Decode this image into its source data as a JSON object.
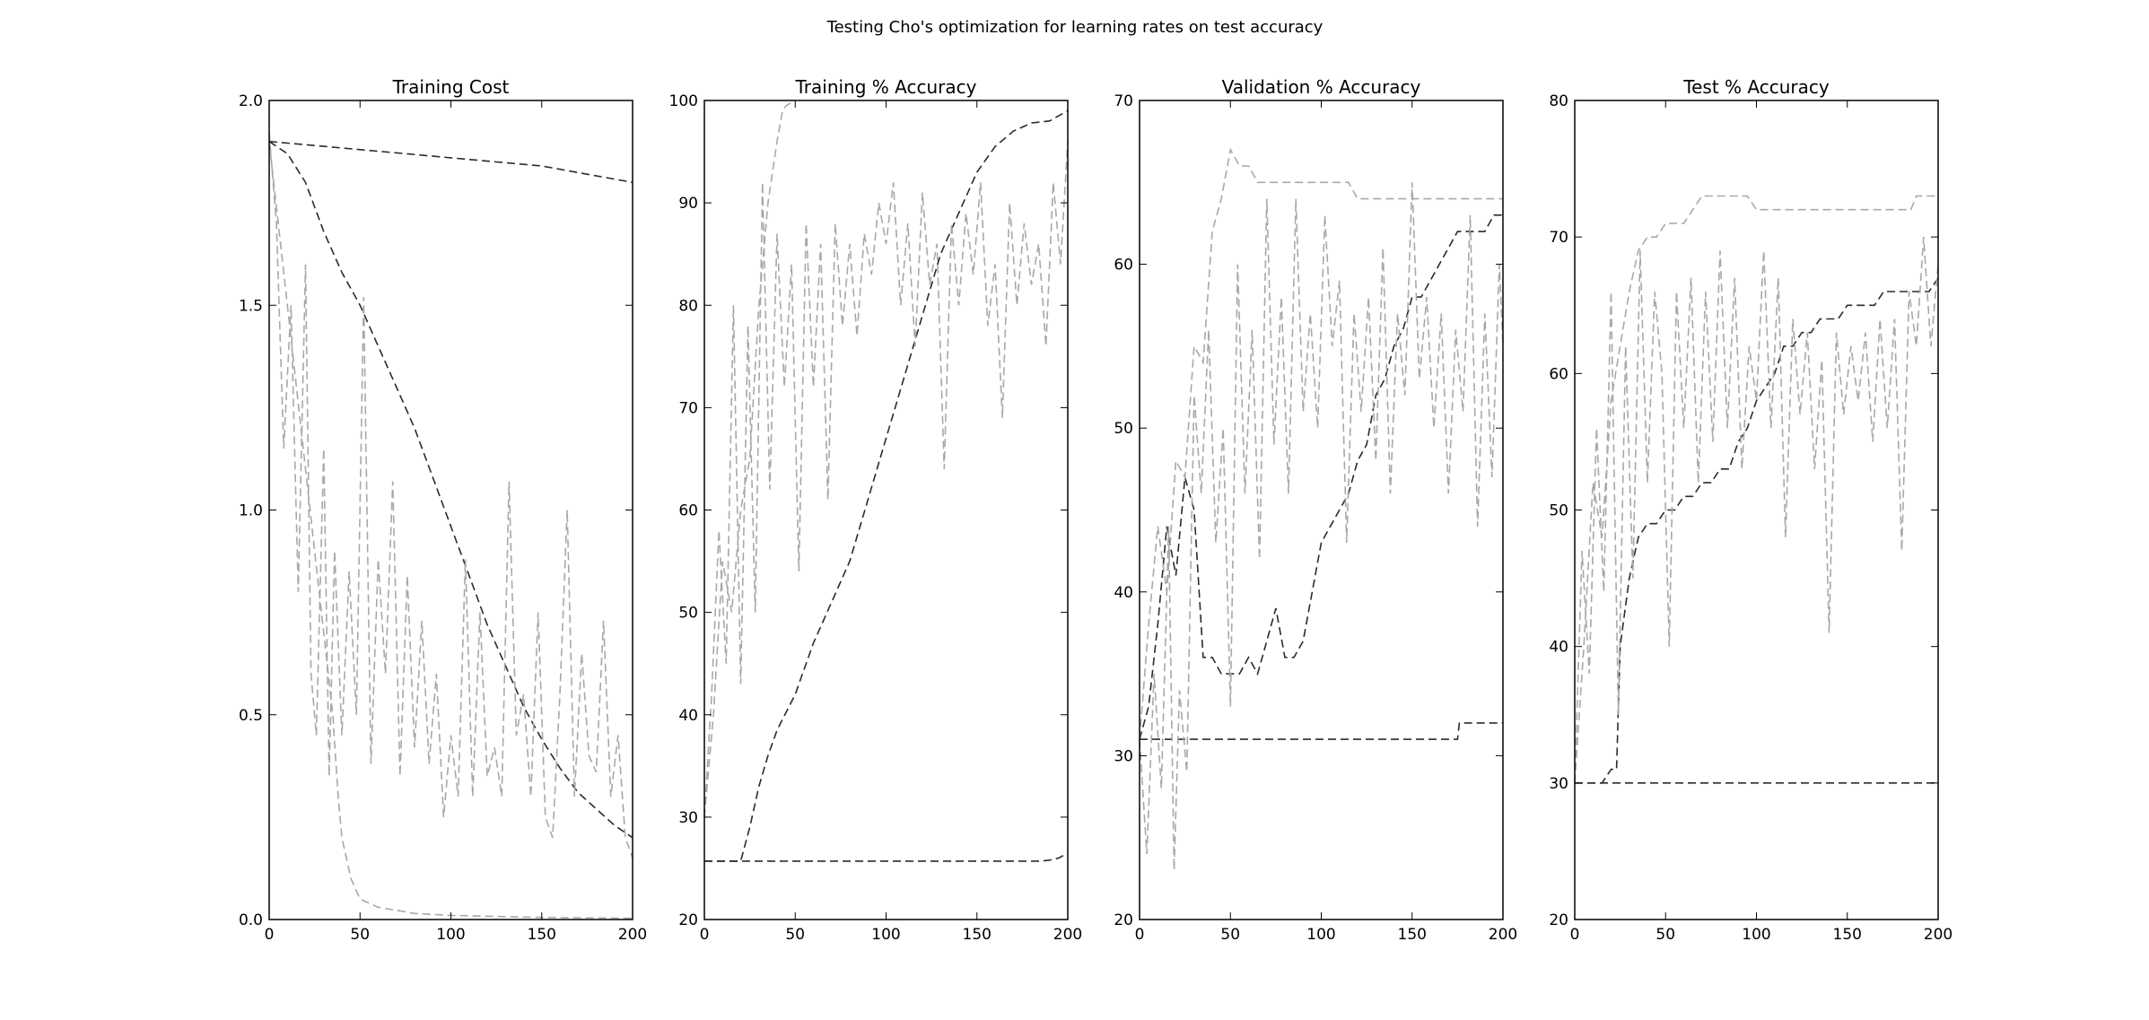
{
  "figure": {
    "suptitle": "Testing Cho's optimization for learning rates on test accuracy"
  },
  "colors": {
    "dark": "#2b2b2b",
    "light": "#a8a8a8",
    "axes": "#000000",
    "background": "#ffffff"
  },
  "chart_data": [
    {
      "type": "line",
      "title": "Training Cost",
      "xlabel": "",
      "ylabel": "",
      "xlim": [
        0,
        200
      ],
      "ylim": [
        0.0,
        2.0
      ],
      "xticks": [
        0,
        50,
        100,
        150,
        200
      ],
      "yticks": [
        0.0,
        0.5,
        1.0,
        1.5,
        2.0
      ],
      "ytick_labels": [
        "0.0",
        "0.5",
        "1.0",
        "1.5",
        "2.0"
      ],
      "grid": false,
      "series": [
        {
          "style": "dark",
          "x": [
            0,
            25,
            50,
            75,
            100,
            125,
            150,
            175,
            200
          ],
          "y": [
            1.9,
            1.89,
            1.88,
            1.87,
            1.86,
            1.85,
            1.84,
            1.82,
            1.8
          ]
        },
        {
          "style": "dark",
          "x": [
            0,
            10,
            20,
            30,
            40,
            50,
            60,
            70,
            80,
            90,
            100,
            110,
            120,
            130,
            140,
            150,
            160,
            170,
            180,
            190,
            200
          ],
          "y": [
            1.9,
            1.87,
            1.8,
            1.68,
            1.58,
            1.5,
            1.4,
            1.3,
            1.2,
            1.08,
            0.96,
            0.84,
            0.72,
            0.62,
            0.52,
            0.44,
            0.37,
            0.31,
            0.27,
            0.23,
            0.2
          ]
        },
        {
          "style": "light",
          "x": [
            0,
            5,
            10,
            15,
            20,
            25,
            30,
            35,
            38,
            40,
            45,
            50,
            60,
            80,
            100,
            150,
            200
          ],
          "y": [
            1.9,
            1.7,
            1.5,
            1.3,
            1.1,
            0.9,
            0.7,
            0.5,
            0.3,
            0.2,
            0.1,
            0.05,
            0.03,
            0.015,
            0.01,
            0.005,
            0.003
          ]
        },
        {
          "style": "light",
          "x": [
            0,
            4,
            8,
            12,
            16,
            20,
            23,
            26,
            30,
            33,
            36,
            40,
            44,
            48,
            52,
            56,
            60,
            64,
            68,
            72,
            76,
            80,
            84,
            88,
            92,
            96,
            100,
            104,
            108,
            112,
            116,
            120,
            124,
            128,
            132,
            136,
            140,
            144,
            148,
            152,
            156,
            160,
            164,
            168,
            172,
            176,
            180,
            184,
            188,
            192,
            196,
            200
          ],
          "y": [
            1.92,
            1.7,
            1.15,
            1.5,
            0.8,
            1.6,
            0.6,
            0.45,
            1.15,
            0.35,
            0.9,
            0.45,
            0.85,
            0.5,
            1.52,
            0.38,
            0.88,
            0.6,
            1.07,
            0.35,
            0.84,
            0.42,
            0.73,
            0.38,
            0.6,
            0.25,
            0.45,
            0.3,
            0.88,
            0.3,
            0.75,
            0.35,
            0.42,
            0.3,
            1.07,
            0.45,
            0.55,
            0.3,
            0.75,
            0.25,
            0.2,
            0.55,
            1.0,
            0.3,
            0.65,
            0.4,
            0.36,
            0.73,
            0.3,
            0.45,
            0.2,
            0.15
          ]
        }
      ]
    },
    {
      "type": "line",
      "title": "Training % Accuracy",
      "xlabel": "",
      "ylabel": "",
      "xlim": [
        0,
        200
      ],
      "ylim": [
        20,
        100
      ],
      "xticks": [
        0,
        50,
        100,
        150,
        200
      ],
      "yticks": [
        20,
        30,
        40,
        50,
        60,
        70,
        80,
        90,
        100
      ],
      "ytick_labels": [
        "20",
        "30",
        "40",
        "50",
        "60",
        "70",
        "80",
        "90",
        "100"
      ],
      "grid": false,
      "series": [
        {
          "style": "dark",
          "x": [
            0,
            50,
            100,
            150,
            185,
            190,
            195,
            200
          ],
          "y": [
            25.7,
            25.7,
            25.7,
            25.7,
            25.7,
            25.8,
            26,
            26.5
          ]
        },
        {
          "style": "dark",
          "x": [
            0,
            20,
            25,
            30,
            35,
            40,
            50,
            60,
            70,
            80,
            90,
            100,
            110,
            120,
            130,
            140,
            150,
            160,
            170,
            180,
            190,
            200
          ],
          "y": [
            25.7,
            25.7,
            29,
            33,
            36,
            38.5,
            42,
            47,
            51,
            55,
            61,
            67,
            73,
            79,
            85,
            89,
            93,
            95.5,
            97,
            97.8,
            98,
            99
          ]
        },
        {
          "style": "light",
          "x": [
            0,
            5,
            10,
            15,
            20,
            25,
            30,
            35,
            40,
            43,
            45,
            50
          ],
          "y": [
            30,
            40,
            55,
            50,
            60,
            65,
            80,
            90,
            96,
            99,
            99.5,
            100
          ]
        },
        {
          "style": "light",
          "x": [
            0,
            4,
            8,
            12,
            16,
            20,
            24,
            28,
            32,
            36,
            40,
            44,
            48,
            52,
            56,
            60,
            64,
            68,
            72,
            76,
            80,
            84,
            88,
            92,
            96,
            100,
            104,
            108,
            112,
            116,
            120,
            124,
            128,
            132,
            136,
            140,
            144,
            148,
            152,
            156,
            160,
            164,
            168,
            172,
            176,
            180,
            184,
            188,
            192,
            196,
            200
          ],
          "y": [
            30,
            42,
            58,
            45,
            80,
            43,
            78,
            50,
            92,
            62,
            87,
            72,
            84,
            54,
            88,
            72,
            86,
            61,
            88,
            78,
            86,
            77,
            87,
            83,
            90,
            86,
            92,
            80,
            88,
            76,
            91,
            82,
            86,
            64,
            88,
            80,
            89,
            83,
            92,
            78,
            84,
            69,
            90,
            80,
            88,
            82,
            86,
            76,
            92,
            84,
            96
          ]
        }
      ]
    },
    {
      "type": "line",
      "title": "Validation % Accuracy",
      "xlabel": "",
      "ylabel": "",
      "xlim": [
        0,
        200
      ],
      "ylim": [
        20,
        70
      ],
      "xticks": [
        0,
        50,
        100,
        150,
        200
      ],
      "yticks": [
        20,
        30,
        40,
        50,
        60,
        70
      ],
      "ytick_labels": [
        "20",
        "30",
        "40",
        "50",
        "60",
        "70"
      ],
      "grid": false,
      "series": [
        {
          "style": "dark",
          "x": [
            0,
            50,
            100,
            150,
            175,
            176,
            200
          ],
          "y": [
            31,
            31,
            31,
            31,
            31,
            32,
            32
          ]
        },
        {
          "style": "dark",
          "x": [
            0,
            5,
            10,
            15,
            20,
            25,
            30,
            35,
            40,
            45,
            50,
            55,
            60,
            65,
            70,
            75,
            80,
            85,
            90,
            95,
            100,
            105,
            110,
            115,
            120,
            125,
            130,
            135,
            140,
            145,
            150,
            155,
            160,
            165,
            170,
            175,
            180,
            185,
            190,
            195,
            200
          ],
          "y": [
            31,
            33,
            38,
            44,
            41,
            47,
            45,
            36,
            36,
            35,
            35,
            35,
            36,
            35,
            37,
            39,
            36,
            36,
            37,
            40,
            43,
            44,
            45,
            46,
            48,
            49,
            52,
            53,
            55,
            56,
            58,
            58,
            59,
            60,
            61,
            62,
            62,
            62,
            62,
            63,
            63
          ]
        },
        {
          "style": "light",
          "x": [
            0,
            5,
            10,
            15,
            20,
            25,
            30,
            35,
            40,
            45,
            50,
            55,
            60,
            65,
            70,
            80,
            90,
            100,
            110,
            115,
            120,
            150,
            200
          ],
          "y": [
            31,
            38,
            44,
            40,
            48,
            47,
            55,
            54,
            62,
            64,
            67,
            66,
            66,
            65,
            65,
            65,
            65,
            65,
            65,
            65,
            64,
            64,
            64
          ]
        },
        {
          "style": "light",
          "x": [
            0,
            4,
            8,
            12,
            16,
            19,
            22,
            26,
            30,
            34,
            38,
            42,
            46,
            50,
            54,
            58,
            62,
            66,
            70,
            74,
            78,
            82,
            86,
            90,
            94,
            98,
            102,
            106,
            110,
            114,
            118,
            122,
            126,
            130,
            134,
            138,
            142,
            146,
            150,
            154,
            158,
            162,
            166,
            170,
            174,
            178,
            182,
            186,
            190,
            194,
            198,
            200
          ],
          "y": [
            31,
            24,
            35,
            28,
            44,
            23,
            34,
            29,
            52,
            46,
            56,
            43,
            50,
            33,
            60,
            46,
            56,
            42,
            64,
            49,
            58,
            46,
            64,
            51,
            57,
            50,
            63,
            55,
            59,
            43,
            57,
            51,
            58,
            48,
            61,
            46,
            57,
            52,
            65,
            53,
            58,
            50,
            57,
            46,
            56,
            51,
            63,
            44,
            57,
            47,
            60,
            55
          ]
        }
      ]
    },
    {
      "type": "line",
      "title": "Test % Accuracy",
      "xlabel": "",
      "ylabel": "",
      "xlim": [
        0,
        200
      ],
      "ylim": [
        20,
        80
      ],
      "xticks": [
        0,
        50,
        100,
        150,
        200
      ],
      "yticks": [
        20,
        30,
        40,
        50,
        60,
        70,
        80
      ],
      "ytick_labels": [
        "20",
        "30",
        "40",
        "50",
        "60",
        "70",
        "80"
      ],
      "grid": false,
      "series": [
        {
          "style": "dark",
          "x": [
            0,
            50,
            100,
            150,
            200
          ],
          "y": [
            30,
            30,
            30,
            30,
            30
          ]
        },
        {
          "style": "dark",
          "x": [
            0,
            5,
            10,
            15,
            20,
            23,
            25,
            28,
            30,
            35,
            40,
            45,
            50,
            55,
            60,
            65,
            70,
            75,
            80,
            85,
            90,
            95,
            100,
            105,
            110,
            115,
            120,
            125,
            130,
            135,
            140,
            145,
            150,
            155,
            160,
            165,
            170,
            175,
            180,
            185,
            190,
            195,
            200
          ],
          "y": [
            30,
            30,
            30,
            30,
            31,
            31,
            40,
            43,
            45,
            48,
            49,
            49,
            50,
            50,
            51,
            51,
            52,
            52,
            53,
            53,
            55,
            56,
            58,
            59,
            60,
            62,
            62,
            63,
            63,
            64,
            64,
            64,
            65,
            65,
            65,
            65,
            66,
            66,
            66,
            66,
            66,
            66,
            67
          ]
        },
        {
          "style": "light",
          "x": [
            0,
            5,
            10,
            15,
            20,
            25,
            30,
            35,
            40,
            45,
            50,
            55,
            60,
            65,
            70,
            80,
            90,
            95,
            100,
            150,
            185,
            188,
            200
          ],
          "y": [
            30,
            40,
            52,
            48,
            58,
            62,
            66,
            69,
            70,
            70,
            71,
            71,
            71,
            72,
            73,
            73,
            73,
            73,
            72,
            72,
            72,
            73,
            73
          ]
        },
        {
          "style": "light",
          "x": [
            0,
            4,
            8,
            12,
            16,
            20,
            24,
            28,
            32,
            36,
            40,
            44,
            48,
            52,
            56,
            60,
            64,
            68,
            72,
            76,
            80,
            84,
            88,
            92,
            96,
            100,
            104,
            108,
            112,
            116,
            120,
            124,
            128,
            132,
            136,
            140,
            144,
            148,
            152,
            156,
            160,
            164,
            168,
            172,
            176,
            180,
            184,
            188,
            192,
            196,
            200
          ],
          "y": [
            30,
            47,
            38,
            56,
            44,
            66,
            35,
            62,
            45,
            69,
            52,
            66,
            60,
            40,
            66,
            56,
            67,
            52,
            66,
            55,
            69,
            56,
            67,
            53,
            62,
            58,
            69,
            56,
            67,
            48,
            64,
            57,
            63,
            53,
            61,
            41,
            63,
            57,
            62,
            58,
            63,
            55,
            64,
            56,
            64,
            47,
            66,
            62,
            70,
            62,
            68
          ]
        }
      ]
    }
  ]
}
